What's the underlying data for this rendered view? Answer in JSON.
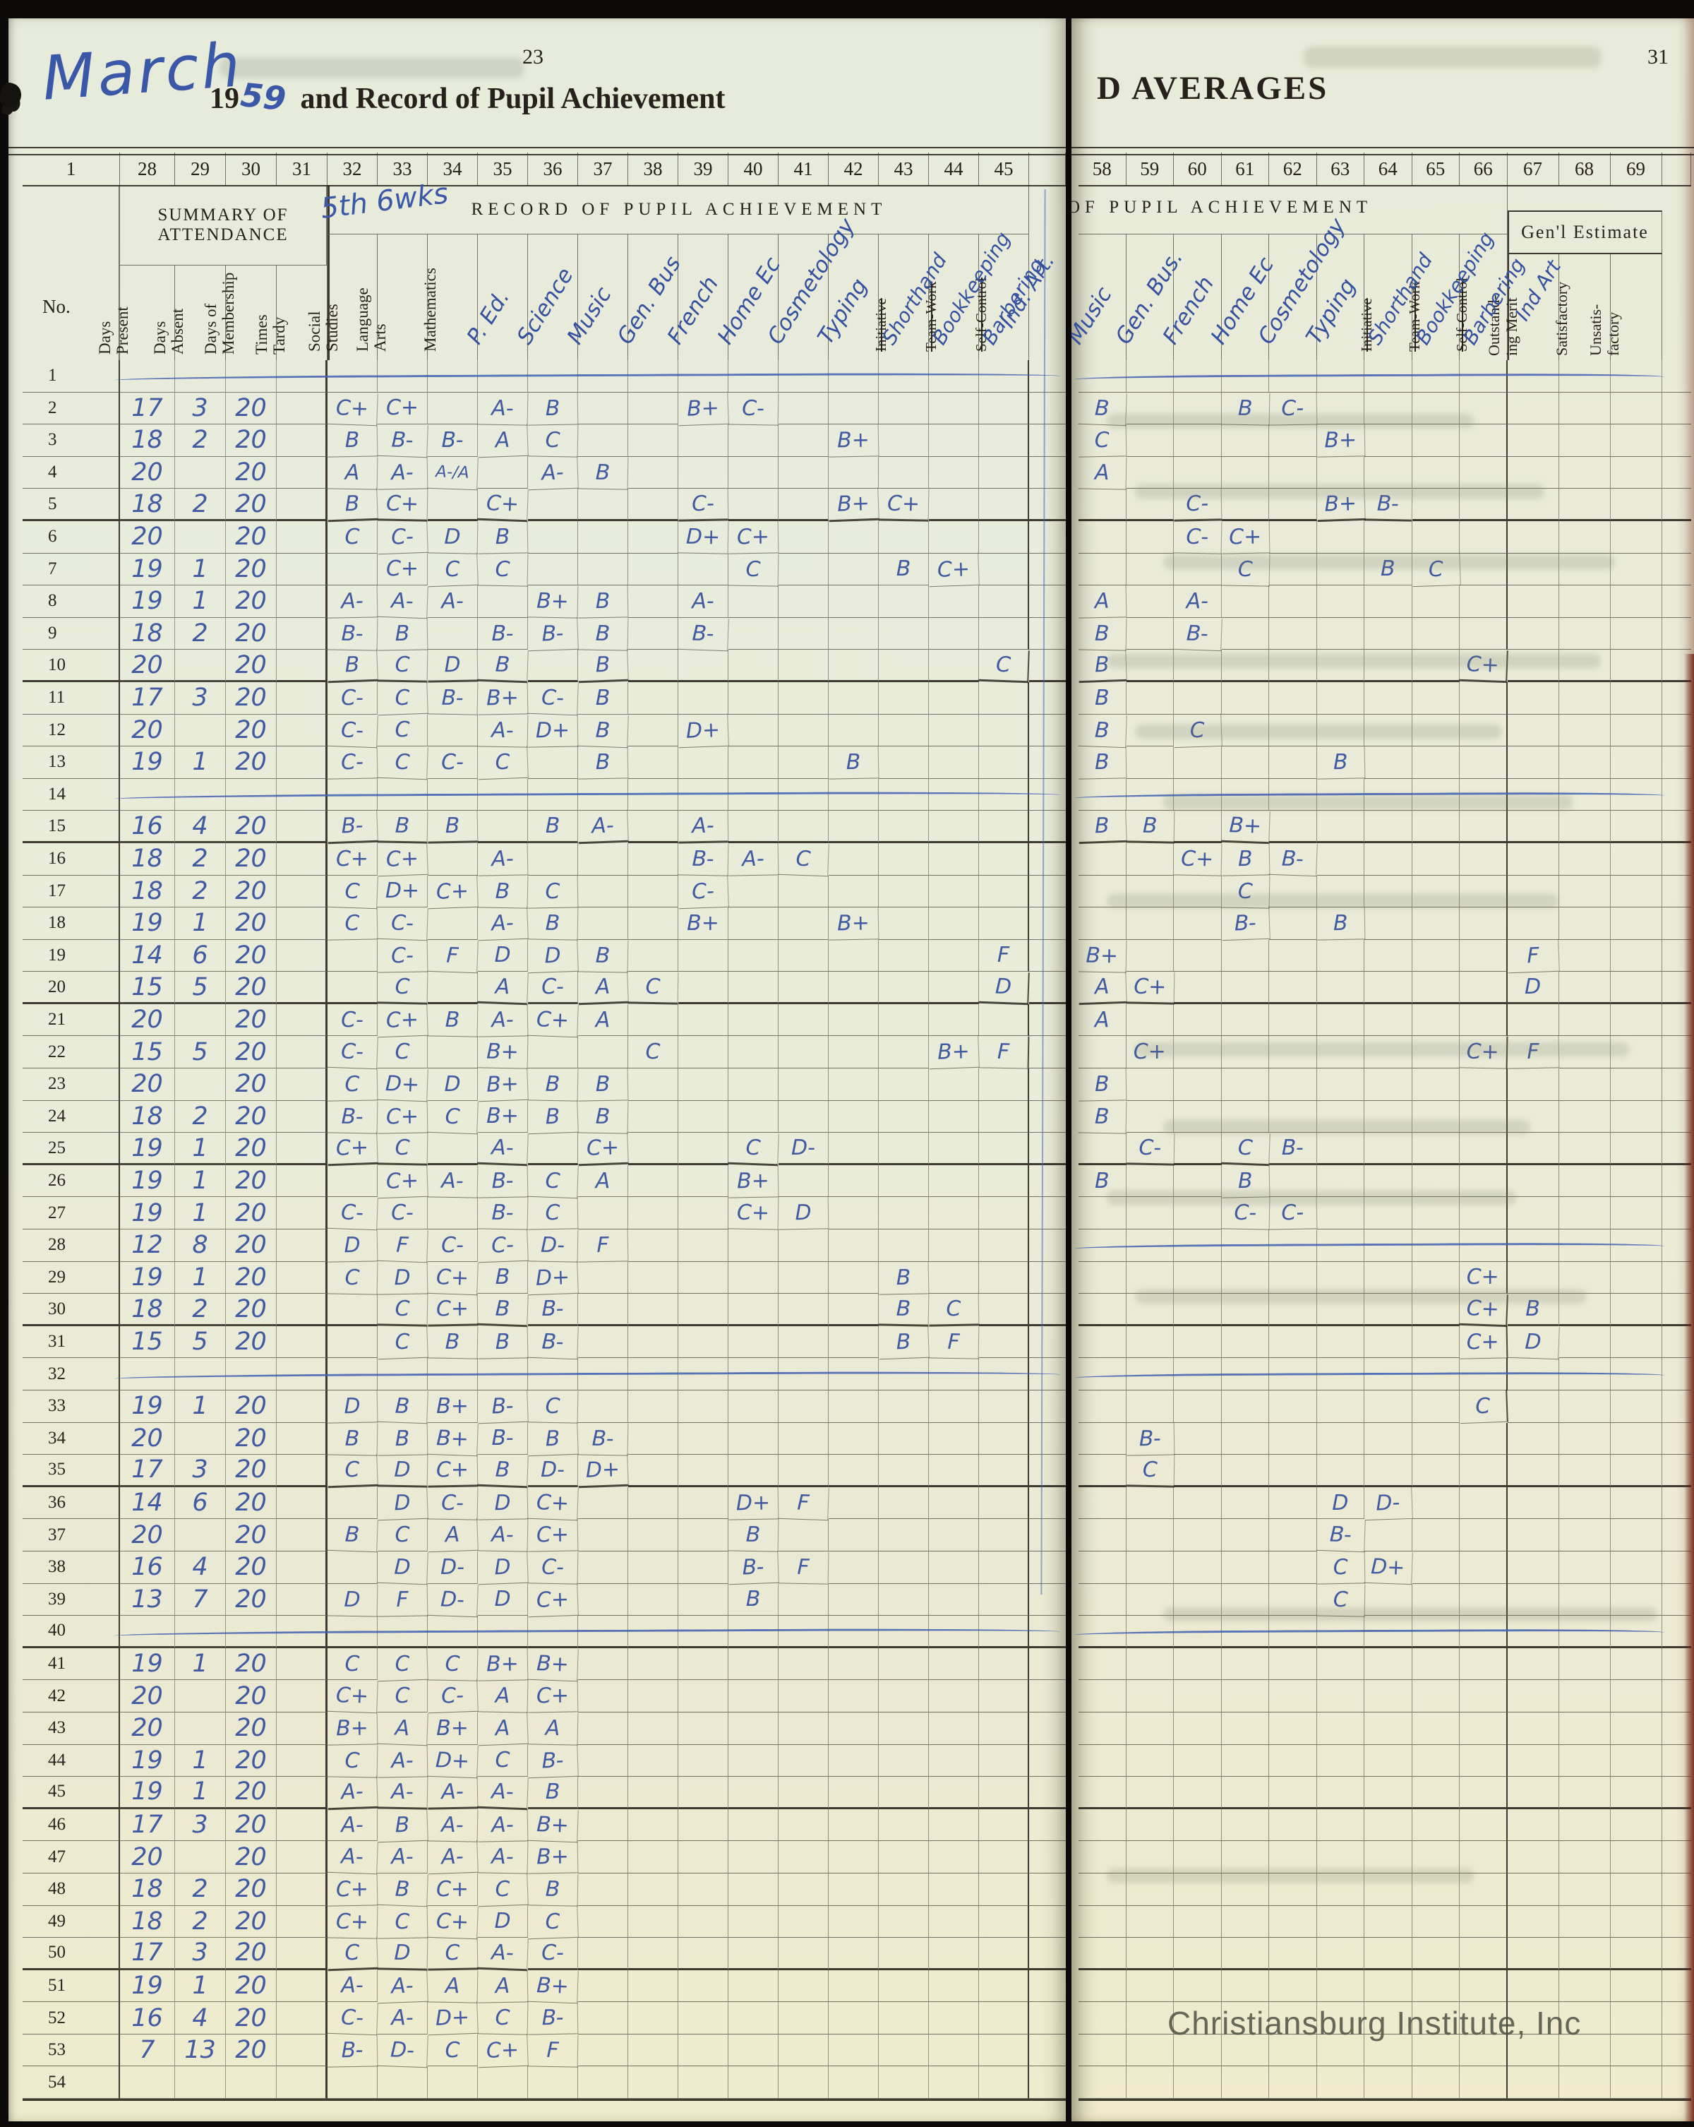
{
  "meta": {
    "month_written": "March",
    "year_printed": "19",
    "year_written": "59",
    "title_printed": "and Record of Pupil Achievement",
    "left_page_number": "23",
    "right_page_header": "D AVERAGES",
    "right_page_number": "31",
    "period_note": "5th 6wks",
    "watermark": "Christiansburg Institute, Inc",
    "ink_color": "#35519f",
    "paper_color": "#e8ecdb"
  },
  "left_page": {
    "column_numbers": [
      "1",
      "28",
      "29",
      "30",
      "31",
      "32",
      "33",
      "34",
      "35",
      "36",
      "37",
      "38",
      "39",
      "40",
      "41",
      "42",
      "43",
      "44",
      "45"
    ],
    "no_label": "No.",
    "attendance_group": [
      "SUMMARY OF",
      "ATTENDANCE"
    ],
    "attendance_cols": [
      [
        "Days",
        "Present"
      ],
      [
        "Days",
        "Absent"
      ],
      [
        "Days of",
        "Membership"
      ],
      [
        "Times",
        "Tardy"
      ]
    ],
    "record_group": "RECORD OF PUPIL ACHIEVEMENT",
    "subjects": [
      {
        "key": "ss",
        "printed": [
          "Social",
          "Studies"
        ]
      },
      {
        "key": "la",
        "printed": [
          "Language",
          "Arts"
        ]
      },
      {
        "key": "ma",
        "printed": [
          "Mathematics"
        ]
      },
      {
        "key": "pe",
        "hw": "P. Ed."
      },
      {
        "key": "sc",
        "hw": "Science"
      },
      {
        "key": "mu",
        "hw": "Music"
      },
      {
        "key": "gb",
        "hw": "Gen. Bus"
      },
      {
        "key": "fr",
        "hw": "French"
      },
      {
        "key": "he",
        "hw": "Home Ec"
      },
      {
        "key": "co",
        "hw": "Cosmetology"
      },
      {
        "key": "ty",
        "hw": "Typing"
      },
      {
        "key": "sh",
        "printed_struck": "Initiative",
        "hw": "Shorthand"
      },
      {
        "key": "bk",
        "printed_struck": "Team-Work",
        "hw": "Bookkeeping"
      },
      {
        "key": "bb",
        "printed_struck": "Self-Control",
        "hw": "Barbering",
        "hw2": "Ind. Art."
      }
    ]
  },
  "right_page": {
    "column_numbers": [
      "58",
      "59",
      "60",
      "61",
      "62",
      "63",
      "64",
      "65",
      "66",
      "67",
      "68",
      "69"
    ],
    "record_group": "OF PUPIL ACHIEVEMENT",
    "genl_group": "Gen'l Estimate",
    "subjects": [
      {
        "key": "mu",
        "hw": "Music"
      },
      {
        "key": "gb",
        "hw": "Gen. Bus."
      },
      {
        "key": "fr",
        "hw": "French"
      },
      {
        "key": "he",
        "hw": "Home Ec"
      },
      {
        "key": "co",
        "hw": "Cosmetology"
      },
      {
        "key": "ty",
        "hw": "Typing"
      },
      {
        "key": "sh",
        "printed_struck": "Initiative",
        "hw": "Shorthand"
      },
      {
        "key": "bk",
        "printed_struck": "Team-Work",
        "hw": "Bookkeeping"
      },
      {
        "key": "bb",
        "printed_struck": "Self-Control",
        "hw": "Barbering"
      },
      {
        "key": "om",
        "printed": [
          "Outstand-",
          "ing Merit"
        ],
        "hw": "Ind Art"
      },
      {
        "key": "sa",
        "printed": [
          "Satisfactory"
        ]
      },
      {
        "key": "un",
        "printed": [
          "Unsatis-",
          "factory"
        ]
      }
    ]
  },
  "rows": [
    {
      "n": 1,
      "sl": 1,
      "sr": 1
    },
    {
      "n": 2,
      "p": "17",
      "a": "3",
      "m": "20",
      "l": {
        "ss": "C+",
        "la": "C+",
        "pe": "A-",
        "sc": "B",
        "fr": "B+",
        "he": "C-"
      },
      "r": {
        "mu": "B",
        "he": "B",
        "co": "C-"
      }
    },
    {
      "n": 3,
      "p": "18",
      "a": "2",
      "m": "20",
      "l": {
        "ss": "B",
        "la": "B-",
        "ma": "B-",
        "pe": "A",
        "sc": "C",
        "ty": "B+"
      },
      "r": {
        "mu": "C",
        "ty": "B+"
      }
    },
    {
      "n": 4,
      "p": "20",
      "a": "",
      "m": "20",
      "l": {
        "ss": "A",
        "la": "A-",
        "ma": "A-/A",
        "sc": "A-",
        "mu": "B"
      },
      "r": {
        "mu": "A"
      }
    },
    {
      "n": 5,
      "p": "18",
      "a": "2",
      "m": "20",
      "l": {
        "ss": "B",
        "la": "C+",
        "pe": "C+",
        "fr": "C-",
        "ty": "B+",
        "sh": "C+"
      },
      "r": {
        "fr": "C-",
        "ty": "B+",
        "sh": "B-"
      }
    },
    {
      "n": 6,
      "p": "20",
      "a": "",
      "m": "20",
      "l": {
        "ss": "C",
        "la": "C-",
        "ma": "D",
        "pe": "B",
        "fr": "D+",
        "he": "C+"
      },
      "r": {
        "fr": "C-",
        "he": "C+"
      }
    },
    {
      "n": 7,
      "p": "19",
      "a": "1",
      "m": "20",
      "l": {
        "la": "C+",
        "ma": "C",
        "pe": "C",
        "he": "C",
        "sh": "B",
        "bk": "C+"
      },
      "r": {
        "he": "C",
        "sh": "B",
        "bk": "C"
      }
    },
    {
      "n": 8,
      "p": "19",
      "a": "1",
      "m": "20",
      "l": {
        "ss": "A-",
        "la": "A-",
        "ma": "A-",
        "sc": "B+",
        "mu": "B",
        "fr": "A-"
      },
      "r": {
        "mu": "A",
        "fr": "A-"
      }
    },
    {
      "n": 9,
      "p": "18",
      "a": "2",
      "m": "20",
      "l": {
        "ss": "B-",
        "la": "B",
        "pe": "B-",
        "sc": "B-",
        "mu": "B",
        "fr": "B-"
      },
      "r": {
        "mu": "B",
        "fr": "B-"
      }
    },
    {
      "n": 10,
      "p": "20",
      "a": "",
      "m": "20",
      "l": {
        "ss": "B",
        "la": "C",
        "ma": "D",
        "pe": "B",
        "mu": "B",
        "bb": "C"
      },
      "r": {
        "mu": "B",
        "bb": "C+"
      }
    },
    {
      "n": 11,
      "p": "17",
      "a": "3",
      "m": "20",
      "l": {
        "ss": "C-",
        "la": "C",
        "ma": "B-",
        "pe": "B+",
        "sc": "C-",
        "mu": "B"
      },
      "r": {
        "mu": "B"
      }
    },
    {
      "n": 12,
      "p": "20",
      "a": "",
      "m": "20",
      "l": {
        "ss": "C-",
        "la": "C",
        "pe": "A-",
        "sc": "D+",
        "mu": "B",
        "fr": "D+"
      },
      "r": {
        "mu": "B",
        "fr": "C"
      }
    },
    {
      "n": 13,
      "p": "19",
      "a": "1",
      "m": "20",
      "l": {
        "ss": "C-",
        "la": "C",
        "ma": "C-",
        "pe": "C",
        "mu": "B",
        "ty": "B"
      },
      "r": {
        "mu": "B",
        "ty": "B"
      }
    },
    {
      "n": 14,
      "sl": 1,
      "sr": 1
    },
    {
      "n": 15,
      "p": "16",
      "a": "4",
      "m": "20",
      "l": {
        "ss": "B-",
        "la": "B",
        "ma": "B",
        "sc": "B",
        "mu": "A-",
        "fr": "A-"
      },
      "r": {
        "mu": "B",
        "gb": "B",
        "he": "B+"
      }
    },
    {
      "n": 16,
      "p": "18",
      "a": "2",
      "m": "20",
      "l": {
        "ss": "C+",
        "la": "C+",
        "pe": "A-",
        "fr": "B-",
        "he": "A-",
        "co": "C"
      },
      "r": {
        "fr": "C+",
        "he": "B",
        "co": "B-"
      }
    },
    {
      "n": 17,
      "p": "18",
      "a": "2",
      "m": "20",
      "l": {
        "ss": "C",
        "la": "D+",
        "ma": "C+",
        "pe": "B",
        "sc": "C",
        "fr": "C-"
      },
      "r": {
        "he": "C"
      }
    },
    {
      "n": 18,
      "p": "19",
      "a": "1",
      "m": "20",
      "l": {
        "ss": "C",
        "la": "C-",
        "pe": "A-",
        "sc": "B",
        "fr": "B+",
        "ty": "B+"
      },
      "r": {
        "he": "B-",
        "ty": "B"
      }
    },
    {
      "n": 19,
      "p": "14",
      "a": "6",
      "m": "20",
      "l": {
        "la": "C-",
        "ma": "F",
        "pe": "D",
        "sc": "D",
        "mu": "B",
        "bb": "F"
      },
      "r": {
        "mu": "B+",
        "om": "F"
      }
    },
    {
      "n": 20,
      "p": "15",
      "a": "5",
      "m": "20",
      "l": {
        "la": "C",
        "pe": "A",
        "sc": "C-",
        "mu": "A",
        "gb": "C",
        "bb": "D"
      },
      "r": {
        "mu": "A",
        "gb": "C+",
        "om": "D"
      }
    },
    {
      "n": 21,
      "p": "20",
      "a": "",
      "m": "20",
      "l": {
        "ss": "C-",
        "la": "C+",
        "ma": "B",
        "pe": "A-",
        "sc": "C+",
        "mu": "A"
      },
      "r": {
        "mu": "A"
      }
    },
    {
      "n": 22,
      "p": "15",
      "a": "5",
      "m": "20",
      "l": {
        "ss": "C-",
        "la": "C",
        "pe": "B+",
        "gb": "C",
        "bk": "B+",
        "bb": "F"
      },
      "r": {
        "gb": "C+",
        "bb": "C+",
        "om": "F"
      }
    },
    {
      "n": 23,
      "p": "20",
      "a": "",
      "m": "20",
      "l": {
        "ss": "C",
        "la": "D+",
        "ma": "D",
        "pe": "B+",
        "sc": "B",
        "mu": "B"
      },
      "r": {
        "mu": "B"
      }
    },
    {
      "n": 24,
      "p": "18",
      "a": "2",
      "m": "20",
      "l": {
        "ss": "B-",
        "la": "C+",
        "ma": "C",
        "pe": "B+",
        "sc": "B",
        "mu": "B"
      },
      "r": {
        "mu": "B"
      }
    },
    {
      "n": 25,
      "p": "19",
      "a": "1",
      "m": "20",
      "l": {
        "ss": "C+",
        "la": "C",
        "pe": "A-",
        "mu": "C+",
        "he": "C",
        "co": "D-"
      },
      "r": {
        "gb": "C-",
        "he": "C",
        "co": "B-"
      }
    },
    {
      "n": 26,
      "p": "19",
      "a": "1",
      "m": "20",
      "l": {
        "la": "C+",
        "ma": "A-",
        "pe": "B-",
        "sc": "C",
        "mu": "A",
        "he": "B+"
      },
      "r": {
        "mu": "B",
        "he": "B"
      }
    },
    {
      "n": 27,
      "p": "19",
      "a": "1",
      "m": "20",
      "l": {
        "ss": "C-",
        "la": "C-",
        "pe": "B-",
        "sc": "C",
        "he": "C+",
        "co": "D"
      },
      "r": {
        "he": "C-",
        "co": "C-"
      }
    },
    {
      "n": 28,
      "p": "12",
      "a": "8",
      "m": "20",
      "l": {
        "ss": "D",
        "la": "F",
        "ma": "C-",
        "pe": "C-",
        "sc": "D-",
        "mu": "F"
      },
      "sr": 1
    },
    {
      "n": 29,
      "p": "19",
      "a": "1",
      "m": "20",
      "l": {
        "ss": "C",
        "la": "D",
        "ma": "C+",
        "pe": "B",
        "sc": "D+",
        "sh": "B"
      },
      "r": {
        "bb": "C+"
      }
    },
    {
      "n": 30,
      "p": "18",
      "a": "2",
      "m": "20",
      "l": {
        "la": "C",
        "ma": "C+",
        "pe": "B",
        "sc": "B-",
        "sh": "B",
        "bk": "C"
      },
      "r": {
        "bb": "C+",
        "om": "B"
      }
    },
    {
      "n": 31,
      "p": "15",
      "a": "5",
      "m": "20",
      "l": {
        "la": "C",
        "ma": "B",
        "pe": "B",
        "sc": "B-",
        "sh": "B",
        "bk": "F"
      },
      "r": {
        "bb": "C+",
        "om": "D"
      }
    },
    {
      "n": 32,
      "sl": 1,
      "sr": 1
    },
    {
      "n": 33,
      "p": "19",
      "a": "1",
      "m": "20",
      "l": {
        "ss": "D",
        "la": "B",
        "ma": "B+",
        "pe": "B-",
        "sc": "C"
      },
      "r": {
        "bb": "C"
      }
    },
    {
      "n": 34,
      "p": "20",
      "a": "",
      "m": "20",
      "l": {
        "ss": "B",
        "la": "B",
        "ma": "B+",
        "pe": "B-",
        "sc": "B",
        "mu": "B-"
      },
      "r": {
        "gb": "B-"
      }
    },
    {
      "n": 35,
      "p": "17",
      "a": "3",
      "m": "20",
      "l": {
        "ss": "C",
        "la": "D",
        "ma": "C+",
        "pe": "B",
        "sc": "D-",
        "mu": "D+"
      },
      "r": {
        "gb": "C"
      }
    },
    {
      "n": 36,
      "p": "14",
      "a": "6",
      "m": "20",
      "l": {
        "la": "D",
        "ma": "C-",
        "pe": "D",
        "sc": "C+",
        "he": "D+",
        "co": "F"
      },
      "r": {
        "ty": "D",
        "sh": "D-"
      }
    },
    {
      "n": 37,
      "p": "20",
      "a": "",
      "m": "20",
      "l": {
        "ss": "B",
        "la": "C",
        "ma": "A",
        "pe": "A-",
        "sc": "C+",
        "he": "B"
      },
      "r": {
        "ty": "B-"
      }
    },
    {
      "n": 38,
      "p": "16",
      "a": "4",
      "m": "20",
      "l": {
        "la": "D",
        "ma": "D-",
        "pe": "D",
        "sc": "C-",
        "he": "B-",
        "co": "F"
      },
      "r": {
        "ty": "C",
        "sh": "D+"
      }
    },
    {
      "n": 39,
      "p": "13",
      "a": "7",
      "m": "20",
      "l": {
        "ss": "D",
        "la": "F",
        "ma": "D-",
        "pe": "D",
        "sc": "C+",
        "he": "B"
      },
      "r": {
        "ty": "C"
      }
    },
    {
      "n": 40,
      "sl": 1,
      "sr": 1
    },
    {
      "n": 41,
      "p": "19",
      "a": "1",
      "m": "20",
      "l": {
        "ss": "C",
        "la": "C",
        "ma": "C",
        "pe": "B+",
        "sc": "B+"
      }
    },
    {
      "n": 42,
      "p": "20",
      "a": "",
      "m": "20",
      "l": {
        "ss": "C+",
        "la": "C",
        "ma": "C-",
        "pe": "A",
        "sc": "C+"
      }
    },
    {
      "n": 43,
      "p": "20",
      "a": "",
      "m": "20",
      "l": {
        "ss": "B+",
        "la": "A",
        "ma": "B+",
        "pe": "A",
        "sc": "A"
      }
    },
    {
      "n": 44,
      "p": "19",
      "a": "1",
      "m": "20",
      "l": {
        "ss": "C",
        "la": "A-",
        "ma": "D+",
        "pe": "C",
        "sc": "B-"
      }
    },
    {
      "n": 45,
      "p": "19",
      "a": "1",
      "m": "20",
      "l": {
        "ss": "A-",
        "la": "A-",
        "ma": "A-",
        "pe": "A-",
        "sc": "B"
      }
    },
    {
      "n": 46,
      "p": "17",
      "a": "3",
      "m": "20",
      "l": {
        "ss": "A-",
        "la": "B",
        "ma": "A-",
        "pe": "A-",
        "sc": "B+"
      }
    },
    {
      "n": 47,
      "p": "20",
      "a": "",
      "m": "20",
      "l": {
        "ss": "A-",
        "la": "A-",
        "ma": "A-",
        "pe": "A-",
        "sc": "B+"
      }
    },
    {
      "n": 48,
      "p": "18",
      "a": "2",
      "m": "20",
      "l": {
        "ss": "C+",
        "la": "B",
        "ma": "C+",
        "pe": "C",
        "sc": "B"
      }
    },
    {
      "n": 49,
      "p": "18",
      "a": "2",
      "m": "20",
      "l": {
        "ss": "C+",
        "la": "C",
        "ma": "C+",
        "pe": "D",
        "sc": "C"
      }
    },
    {
      "n": 50,
      "p": "17",
      "a": "3",
      "m": "20",
      "l": {
        "ss": "C",
        "la": "D",
        "ma": "C",
        "pe": "A-",
        "sc": "C-"
      }
    },
    {
      "n": 51,
      "p": "19",
      "a": "1",
      "m": "20",
      "l": {
        "ss": "A-",
        "la": "A-",
        "ma": "A",
        "pe": "A",
        "sc": "B+"
      }
    },
    {
      "n": 52,
      "p": "16",
      "a": "4",
      "m": "20",
      "l": {
        "ss": "C-",
        "la": "A-",
        "ma": "D+",
        "pe": "C",
        "sc": "B-"
      }
    },
    {
      "n": 53,
      "p": "7",
      "a": "13",
      "m": "20",
      "l": {
        "ss": "B-",
        "la": "D-",
        "ma": "C",
        "pe": "C+",
        "sc": "F"
      }
    },
    {
      "n": 54
    }
  ]
}
